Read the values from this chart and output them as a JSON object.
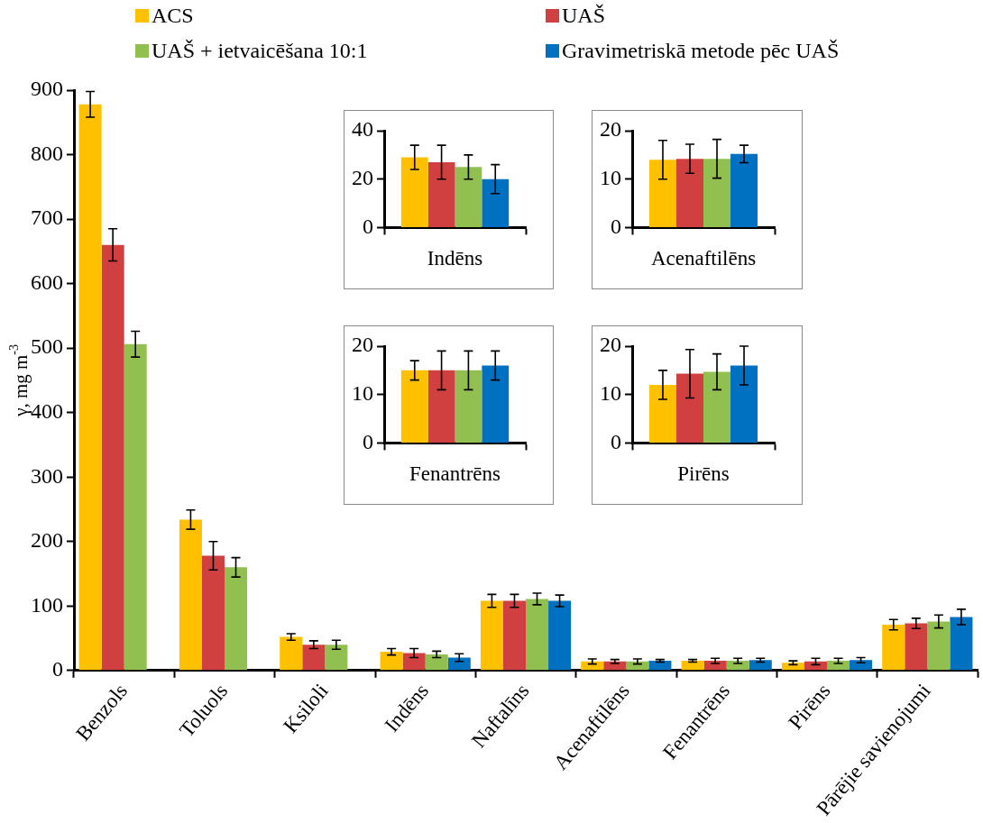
{
  "chart_data": [
    {
      "type": "bar",
      "ylabel": "γ, mg m$^{-3}$",
      "legend": "top",
      "categories": [
        "Benzols",
        "Toluols",
        "Ksiloli",
        "Indēns",
        "Naftalīns",
        "Acenaftilēns",
        "Fenantrēns",
        "Pirēns",
        "Pārējie savienojumi"
      ],
      "ylim": [
        0,
        900
      ],
      "yticks": [
        0,
        100,
        200,
        300,
        400,
        500,
        600,
        700,
        800,
        900
      ],
      "series": [
        {
          "name": "ACS",
          "color": "#ffc000",
          "values": [
            878,
            234,
            52,
            29,
            108,
            14,
            15,
            12,
            71
          ],
          "errors": [
            20,
            15,
            5,
            5,
            10,
            4,
            2,
            3,
            8
          ]
        },
        {
          "name": "UAŠ",
          "color": "#d04040",
          "values": [
            660,
            178,
            40,
            27,
            108,
            14,
            15,
            14,
            73
          ],
          "errors": [
            25,
            22,
            6,
            7,
            10,
            3,
            4,
            5,
            8
          ]
        },
        {
          "name": "UAŠ + ietvaicēšana 10:1",
          "color": "#92c050",
          "values": [
            506,
            160,
            40,
            25,
            111,
            14,
            15,
            15,
            76
          ],
          "errors": [
            20,
            15,
            7,
            5,
            9,
            4,
            4,
            4,
            10
          ]
        },
        {
          "name": "Gravimetriskā metode pēc UAŠ",
          "color": "#0070c0",
          "values": [
            null,
            null,
            null,
            20,
            108,
            15,
            16,
            16,
            83
          ],
          "errors": [
            null,
            null,
            null,
            6,
            9,
            2,
            3,
            4,
            12
          ]
        }
      ]
    },
    {
      "type": "bar",
      "categories": [
        "Indēns"
      ],
      "ylim": [
        0,
        40
      ],
      "yticks": [
        0,
        20,
        40
      ],
      "series": [
        {
          "color": "#ffc000",
          "values": [
            29
          ],
          "errors": [
            5
          ]
        },
        {
          "color": "#d04040",
          "values": [
            27
          ],
          "errors": [
            7
          ]
        },
        {
          "color": "#92c050",
          "values": [
            25
          ],
          "errors": [
            5
          ]
        },
        {
          "color": "#0070c0",
          "values": [
            20
          ],
          "errors": [
            6
          ]
        }
      ]
    },
    {
      "type": "bar",
      "categories": [
        "Acenaftilēns"
      ],
      "ylim": [
        0,
        20
      ],
      "yticks": [
        0,
        10,
        20
      ],
      "series": [
        {
          "color": "#ffc000",
          "values": [
            14
          ],
          "errors": [
            4
          ]
        },
        {
          "color": "#d04040",
          "values": [
            14.2
          ],
          "errors": [
            3
          ]
        },
        {
          "color": "#92c050",
          "values": [
            14.2
          ],
          "errors": [
            4
          ]
        },
        {
          "color": "#0070c0",
          "values": [
            15.2
          ],
          "errors": [
            1.8
          ]
        }
      ]
    },
    {
      "type": "bar",
      "categories": [
        "Fenantrēns"
      ],
      "ylim": [
        0,
        20
      ],
      "yticks": [
        0,
        10,
        20
      ],
      "series": [
        {
          "color": "#ffc000",
          "values": [
            15
          ],
          "errors": [
            2
          ]
        },
        {
          "color": "#d04040",
          "values": [
            15
          ],
          "errors": [
            4
          ]
        },
        {
          "color": "#92c050",
          "values": [
            15
          ],
          "errors": [
            4
          ]
        },
        {
          "color": "#0070c0",
          "values": [
            16
          ],
          "errors": [
            3
          ]
        }
      ]
    },
    {
      "type": "bar",
      "categories": [
        "Pirēns"
      ],
      "ylim": [
        0,
        20
      ],
      "yticks": [
        0,
        10,
        20
      ],
      "series": [
        {
          "color": "#ffc000",
          "values": [
            12
          ],
          "errors": [
            3
          ]
        },
        {
          "color": "#d04040",
          "values": [
            14.3
          ],
          "errors": [
            5
          ]
        },
        {
          "color": "#92c050",
          "values": [
            14.7
          ],
          "errors": [
            3.7
          ]
        },
        {
          "color": "#0070c0",
          "values": [
            16
          ],
          "errors": [
            4
          ]
        }
      ]
    }
  ]
}
